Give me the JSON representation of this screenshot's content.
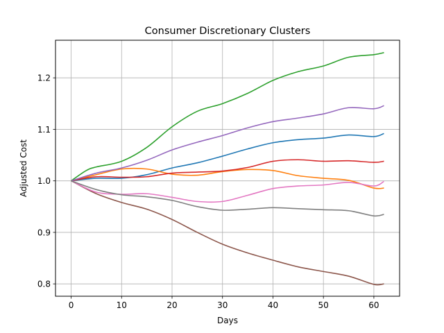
{
  "chart_data": {
    "type": "line",
    "title": "Consumer Discretionary Clusters",
    "xlabel": "Days",
    "ylabel": "Adjusted Cost",
    "xlim": [
      -3.1,
      65.1
    ],
    "ylim": [
      0.776,
      1.273
    ],
    "xticks": [
      0,
      10,
      20,
      30,
      40,
      50,
      60
    ],
    "yticks": [
      0.8,
      0.9,
      1.0,
      1.1,
      1.2
    ],
    "ytick_labels": [
      "0.8",
      "0.9",
      "1.0",
      "1.1",
      "1.2"
    ],
    "grid": true,
    "series": [
      {
        "color": "#1f77b4",
        "x": [
          0,
          5,
          10,
          15,
          20,
          25,
          30,
          35,
          40,
          45,
          50,
          55,
          60,
          62
        ],
        "values": [
          1.0,
          1.005,
          1.005,
          1.012,
          1.025,
          1.035,
          1.048,
          1.062,
          1.074,
          1.08,
          1.083,
          1.089,
          1.086,
          1.092
        ]
      },
      {
        "color": "#ff7f0e",
        "x": [
          0,
          5,
          10,
          15,
          20,
          25,
          30,
          35,
          40,
          45,
          50,
          55,
          60,
          62
        ],
        "values": [
          1.0,
          1.012,
          1.023,
          1.023,
          1.013,
          1.011,
          1.018,
          1.022,
          1.02,
          1.01,
          1.005,
          1.001,
          0.986,
          0.986
        ]
      },
      {
        "color": "#2ca02c",
        "x": [
          0,
          3,
          5,
          10,
          15,
          20,
          25,
          30,
          35,
          40,
          45,
          50,
          55,
          60,
          62
        ],
        "values": [
          1.0,
          1.02,
          1.027,
          1.038,
          1.065,
          1.105,
          1.135,
          1.15,
          1.17,
          1.195,
          1.212,
          1.223,
          1.24,
          1.245,
          1.249
        ]
      },
      {
        "color": "#d62728",
        "x": [
          0,
          5,
          10,
          15,
          20,
          25,
          30,
          35,
          40,
          45,
          50,
          55,
          60,
          62
        ],
        "values": [
          1.0,
          1.008,
          1.007,
          1.008,
          1.015,
          1.017,
          1.019,
          1.026,
          1.038,
          1.041,
          1.038,
          1.039,
          1.036,
          1.038
        ]
      },
      {
        "color": "#9467bd",
        "x": [
          0,
          5,
          10,
          15,
          20,
          25,
          30,
          35,
          40,
          45,
          50,
          55,
          60,
          62
        ],
        "values": [
          1.0,
          1.015,
          1.025,
          1.04,
          1.06,
          1.075,
          1.088,
          1.103,
          1.115,
          1.122,
          1.13,
          1.142,
          1.14,
          1.146
        ]
      },
      {
        "color": "#8c564b",
        "x": [
          0,
          5,
          10,
          15,
          20,
          25,
          30,
          35,
          40,
          45,
          50,
          55,
          60,
          62
        ],
        "values": [
          1.0,
          0.975,
          0.958,
          0.945,
          0.925,
          0.9,
          0.877,
          0.86,
          0.846,
          0.833,
          0.824,
          0.815,
          0.799,
          0.8
        ]
      },
      {
        "color": "#e377c2",
        "x": [
          0,
          5,
          10,
          15,
          20,
          25,
          30,
          35,
          40,
          45,
          50,
          55,
          60,
          62
        ],
        "values": [
          1.0,
          0.978,
          0.974,
          0.975,
          0.968,
          0.96,
          0.96,
          0.972,
          0.985,
          0.99,
          0.992,
          0.997,
          0.99,
          0.999
        ]
      },
      {
        "color": "#7f7f7f",
        "x": [
          0,
          5,
          10,
          15,
          20,
          25,
          30,
          35,
          40,
          45,
          50,
          55,
          60,
          62
        ],
        "values": [
          1.0,
          0.983,
          0.973,
          0.969,
          0.962,
          0.95,
          0.943,
          0.945,
          0.948,
          0.946,
          0.944,
          0.942,
          0.932,
          0.935
        ]
      }
    ]
  }
}
